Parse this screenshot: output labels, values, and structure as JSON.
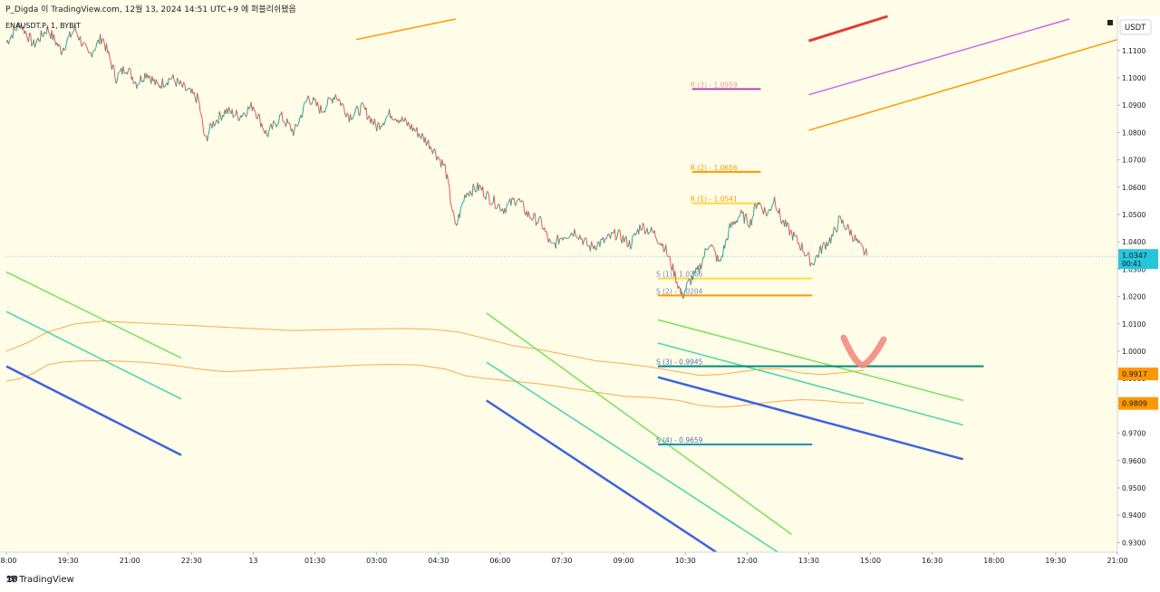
{
  "header": {
    "publish_text": "P_Digda 이 TradingView.com, 12월 13, 2024 14:51 UTC+9 에 퍼블리쉬됐음"
  },
  "symbol_label": "ENAUSDT.P, 1, BYBIT",
  "footer": {
    "brand": "TradingView"
  },
  "chart_data": {
    "type": "line",
    "currency": "USDT",
    "y_ticks": [
      1.11,
      1.1,
      1.09,
      1.08,
      1.07,
      1.06,
      1.05,
      1.04,
      1.03,
      1.02,
      1.01,
      1.0,
      0.99,
      0.98,
      0.97,
      0.96,
      0.95,
      0.94,
      0.93
    ],
    "y_tick_labels": [
      "1.1100",
      "1.1000",
      "1.0900",
      "1.0800",
      "1.0700",
      "1.0600",
      "1.0500",
      "1.0400",
      "1.0300",
      "1.0200",
      "1.0100",
      "1.0000",
      "0.9900",
      "0.9800",
      "0.9700",
      "0.9600",
      "0.9500",
      "0.9400",
      "0.9300"
    ],
    "ylim": [
      0.9265,
      1.1225
    ],
    "x_ticks": [
      {
        "t": 0,
        "label": "18:00"
      },
      {
        "t": 90,
        "label": "19:30"
      },
      {
        "t": 180,
        "label": "21:00"
      },
      {
        "t": 270,
        "label": "22:30"
      },
      {
        "t": 360,
        "label": "13"
      },
      {
        "t": 450,
        "label": "01:30"
      },
      {
        "t": 540,
        "label": "03:00"
      },
      {
        "t": 630,
        "label": "04:30"
      },
      {
        "t": 720,
        "label": "06:00"
      },
      {
        "t": 810,
        "label": "07:30"
      },
      {
        "t": 900,
        "label": "09:00"
      },
      {
        "t": 990,
        "label": "10:30"
      },
      {
        "t": 1080,
        "label": "12:00"
      },
      {
        "t": 1170,
        "label": "13:30"
      },
      {
        "t": 1260,
        "label": "15:00"
      },
      {
        "t": 1350,
        "label": "16:30"
      },
      {
        "t": 1440,
        "label": "18:00"
      },
      {
        "t": 1530,
        "label": "19:30"
      },
      {
        "t": 1620,
        "label": "21:00"
      }
    ],
    "xlim": [
      0,
      1620
    ],
    "price_path": [
      [
        0,
        1.113
      ],
      [
        20,
        1.12
      ],
      [
        40,
        1.112
      ],
      [
        60,
        1.118
      ],
      [
        80,
        1.11
      ],
      [
        100,
        1.118
      ],
      [
        120,
        1.108
      ],
      [
        140,
        1.115
      ],
      [
        160,
        1.1
      ],
      [
        175,
        1.104
      ],
      [
        190,
        1.098
      ],
      [
        205,
        1.102
      ],
      [
        220,
        1.097
      ],
      [
        240,
        1.1
      ],
      [
        260,
        1.096
      ],
      [
        280,
        1.092
      ],
      [
        290,
        1.077
      ],
      [
        300,
        1.083
      ],
      [
        320,
        1.088
      ],
      [
        340,
        1.086
      ],
      [
        360,
        1.09
      ],
      [
        380,
        1.079
      ],
      [
        400,
        1.086
      ],
      [
        420,
        1.08
      ],
      [
        440,
        1.093
      ],
      [
        460,
        1.088
      ],
      [
        480,
        1.094
      ],
      [
        500,
        1.086
      ],
      [
        520,
        1.089
      ],
      [
        540,
        1.082
      ],
      [
        560,
        1.087
      ],
      [
        580,
        1.084
      ],
      [
        600,
        1.08
      ],
      [
        620,
        1.075
      ],
      [
        640,
        1.067
      ],
      [
        655,
        1.045
      ],
      [
        670,
        1.058
      ],
      [
        690,
        1.06
      ],
      [
        705,
        1.056
      ],
      [
        725,
        1.052
      ],
      [
        745,
        1.056
      ],
      [
        760,
        1.05
      ],
      [
        780,
        1.047
      ],
      [
        795,
        1.038
      ],
      [
        810,
        1.042
      ],
      [
        830,
        1.044
      ],
      [
        850,
        1.038
      ],
      [
        870,
        1.04
      ],
      [
        890,
        1.043
      ],
      [
        910,
        1.039
      ],
      [
        925,
        1.046
      ],
      [
        945,
        1.043
      ],
      [
        960,
        1.038
      ],
      [
        975,
        1.028
      ],
      [
        985,
        1.02
      ],
      [
        995,
        1.025
      ],
      [
        1010,
        1.03
      ],
      [
        1025,
        1.04
      ],
      [
        1040,
        1.032
      ],
      [
        1055,
        1.045
      ],
      [
        1070,
        1.05
      ],
      [
        1085,
        1.047
      ],
      [
        1095,
        1.055
      ],
      [
        1110,
        1.05
      ],
      [
        1120,
        1.056
      ],
      [
        1130,
        1.048
      ],
      [
        1145,
        1.043
      ],
      [
        1160,
        1.038
      ],
      [
        1175,
        1.032
      ],
      [
        1190,
        1.038
      ],
      [
        1205,
        1.042
      ],
      [
        1215,
        1.048
      ],
      [
        1230,
        1.044
      ],
      [
        1245,
        1.038
      ],
      [
        1255,
        1.035
      ]
    ],
    "current_price": {
      "label": "1.0347",
      "countdown": "00:41",
      "value": 1.0347,
      "color": "#26c6da"
    },
    "price_tags": [
      {
        "label": "0.9917",
        "value": 0.9917,
        "color": "#ff9800"
      },
      {
        "label": "0.9809",
        "value": 0.9809,
        "color": "#ff9800"
      }
    ],
    "pivot_levels": [
      {
        "label": "R (3) - 1.0959",
        "value": 1.0959,
        "t0": 1000,
        "t1": 1100,
        "color": "#ab47bc",
        "text_color": "#ef9a9a"
      },
      {
        "label": "R (2) - 1.0656",
        "value": 1.0656,
        "t0": 1000,
        "t1": 1100,
        "color": "#ff9800",
        "text_color": "#ff9800"
      },
      {
        "label": "R (1) - 1.0541",
        "value": 1.0541,
        "t0": 1000,
        "t1": 1100,
        "color": "#ffd740",
        "text_color": "#ff9800"
      },
      {
        "label": "S (1) - 1.0266",
        "value": 1.0266,
        "t0": 950,
        "t1": 1175,
        "color": "#ffd740",
        "text_color": "#7986cb"
      },
      {
        "label": "S (2) - 1.0204",
        "value": 1.0204,
        "t0": 950,
        "t1": 1175,
        "color": "#ff9800",
        "text_color": "#7986cb"
      },
      {
        "label": "S (3) - 0.9945",
        "value": 0.9945,
        "t0": 950,
        "t1": 1425,
        "color": "#00897b",
        "text_color": "#5c6bc0"
      },
      {
        "label": "S (4) - 0.9659",
        "value": 0.9659,
        "t0": 950,
        "t1": 1175,
        "color": "#0097a7",
        "text_color": "#5c6bc0"
      }
    ],
    "trend_lines": [
      {
        "t0": 510,
        "v0": 1.114,
        "t1": 655,
        "v1": 1.1215,
        "color": "#ff9800",
        "w": 1.5
      },
      {
        "t0": 1170,
        "v0": 1.1135,
        "t1": 1285,
        "v1": 1.1225,
        "color": "#e53935",
        "w": 3
      },
      {
        "t0": 1170,
        "v0": 1.0938,
        "t1": 1550,
        "v1": 1.1215,
        "color": "#ce66ea",
        "w": 1.5
      },
      {
        "t0": 1170,
        "v0": 1.0808,
        "t1": 1620,
        "v1": 1.114,
        "color": "#ff9800",
        "w": 1.5
      },
      {
        "t0": 0,
        "v0": 1.029,
        "t1": 255,
        "v1": 0.9975,
        "color": "#76e35c",
        "w": 1.5
      },
      {
        "t0": 0,
        "v0": 1.0145,
        "t1": 255,
        "v1": 0.9825,
        "color": "#44d7a8",
        "w": 1.5
      },
      {
        "t0": 0,
        "v0": 0.9945,
        "t1": 255,
        "v1": 0.962,
        "color": "#3d63e0",
        "w": 2.5
      },
      {
        "t0": 700,
        "v0": 1.014,
        "t1": 1145,
        "v1": 0.933,
        "color": "#76e35c",
        "w": 1.5
      },
      {
        "t0": 700,
        "v0": 0.996,
        "t1": 1125,
        "v1": 0.9265,
        "color": "#44d7a8",
        "w": 1.5
      },
      {
        "t0": 700,
        "v0": 0.982,
        "t1": 1035,
        "v1": 0.9265,
        "color": "#3d63e0",
        "w": 2.5
      },
      {
        "t0": 950,
        "v0": 1.0115,
        "t1": 1395,
        "v1": 0.982,
        "color": "#76e35c",
        "w": 1.5
      },
      {
        "t0": 950,
        "v0": 1.003,
        "t1": 1395,
        "v1": 0.973,
        "color": "#44d7a8",
        "w": 1.5
      },
      {
        "t0": 950,
        "v0": 0.9905,
        "t1": 1395,
        "v1": 0.9605,
        "color": "#3d63e0",
        "w": 2.5
      }
    ],
    "ma_upper": [
      [
        0,
        1.0
      ],
      [
        30,
        1.003
      ],
      [
        60,
        1.007
      ],
      [
        100,
        1.01
      ],
      [
        140,
        1.011
      ],
      [
        180,
        1.0105
      ],
      [
        220,
        1.01
      ],
      [
        260,
        1.0095
      ],
      [
        300,
        1.009
      ],
      [
        340,
        1.0085
      ],
      [
        380,
        1.008
      ],
      [
        420,
        1.0075
      ],
      [
        460,
        1.0078
      ],
      [
        500,
        1.008
      ],
      [
        540,
        1.0082
      ],
      [
        580,
        1.0083
      ],
      [
        620,
        1.008
      ],
      [
        660,
        1.007
      ],
      [
        700,
        1.0045
      ],
      [
        740,
        1.002
      ],
      [
        780,
        1.0005
      ],
      [
        820,
        0.9985
      ],
      [
        860,
        0.9965
      ],
      [
        900,
        0.9955
      ],
      [
        940,
        0.9942
      ],
      [
        980,
        0.9925
      ],
      [
        1010,
        0.9912
      ],
      [
        1040,
        0.9915
      ],
      [
        1070,
        0.9925
      ],
      [
        1100,
        0.9935
      ],
      [
        1130,
        0.9935
      ],
      [
        1160,
        0.992
      ],
      [
        1190,
        0.9915
      ],
      [
        1220,
        0.9922
      ],
      [
        1250,
        0.993
      ]
    ],
    "ma_lower": [
      [
        0,
        0.989
      ],
      [
        20,
        0.99
      ],
      [
        40,
        0.992
      ],
      [
        60,
        0.995
      ],
      [
        80,
        0.996
      ],
      [
        110,
        0.9965
      ],
      [
        150,
        0.9965
      ],
      [
        200,
        0.996
      ],
      [
        240,
        0.995
      ],
      [
        280,
        0.9935
      ],
      [
        320,
        0.9925
      ],
      [
        360,
        0.993
      ],
      [
        400,
        0.9935
      ],
      [
        440,
        0.994
      ],
      [
        480,
        0.9945
      ],
      [
        520,
        0.995
      ],
      [
        560,
        0.9952
      ],
      [
        600,
        0.995
      ],
      [
        640,
        0.9935
      ],
      [
        670,
        0.991
      ],
      [
        700,
        0.99
      ],
      [
        740,
        0.989
      ],
      [
        780,
        0.988
      ],
      [
        820,
        0.9865
      ],
      [
        860,
        0.985
      ],
      [
        900,
        0.9835
      ],
      [
        940,
        0.983
      ],
      [
        980,
        0.982
      ],
      [
        1010,
        0.9802
      ],
      [
        1040,
        0.9795
      ],
      [
        1070,
        0.98
      ],
      [
        1100,
        0.981
      ],
      [
        1130,
        0.9818
      ],
      [
        1160,
        0.9823
      ],
      [
        1190,
        0.982
      ],
      [
        1220,
        0.9812
      ],
      [
        1250,
        0.981
      ]
    ],
    "annotation": {
      "type": "checkmark",
      "color": "#f28b82"
    },
    "grid": false,
    "background": "#fffde7"
  }
}
